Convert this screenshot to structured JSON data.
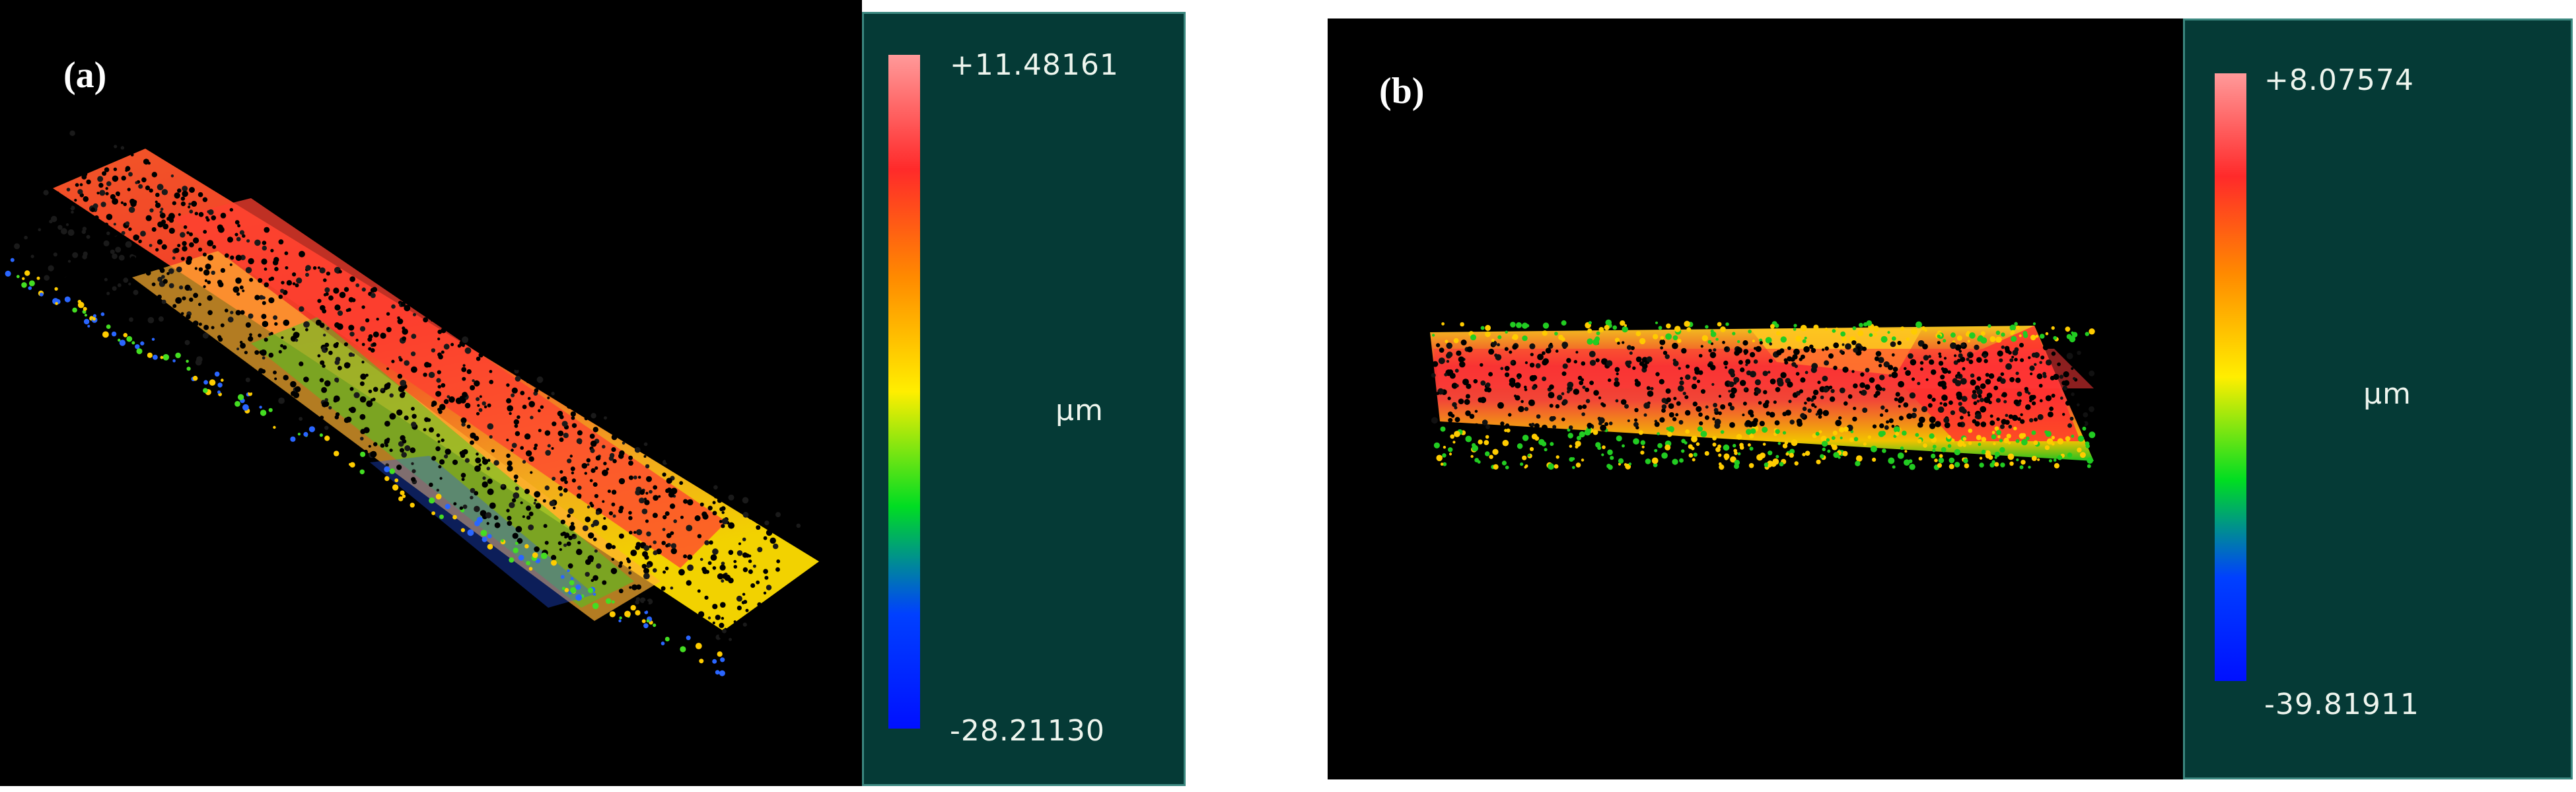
{
  "panels": [
    {
      "label": "(a)",
      "scale": {
        "max": "+11.48161",
        "unit": "µm",
        "min": "-28.21130"
      }
    },
    {
      "label": "(b)",
      "scale": {
        "max": "+8.07574",
        "unit": "µm",
        "min": "-39.81911"
      }
    }
  ],
  "colors": {
    "background": "#000000",
    "scale_panel": "#053a36",
    "scale_border": "#3c8880",
    "colormap": [
      "#ff9a9a",
      "#ff2a2a",
      "#ff8a00",
      "#ffee00",
      "#00dd22",
      "#0040ff",
      "#0010ff"
    ]
  }
}
